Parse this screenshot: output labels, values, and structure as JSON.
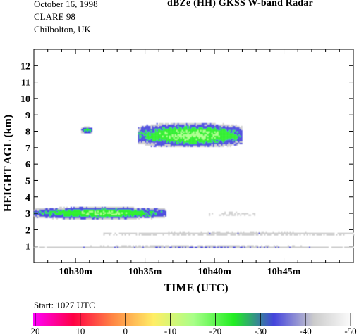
{
  "header": {
    "date": "October 16, 1998",
    "campaign": "CLARE 98",
    "site": "Chilbolton, UK"
  },
  "colorbar": {
    "start_text": "Start: 1027 UTC",
    "labels": [
      "20",
      "10",
      "0",
      "-10",
      "-20",
      "-30",
      "-40",
      "-50"
    ],
    "colors": [
      "#ff00ff",
      "#ff0044",
      "#ff8844",
      "#ffee66",
      "#a8ff88",
      "#22ee22",
      "#4444dd",
      "#cccccc",
      "#ffffff"
    ]
  },
  "chart_data": {
    "type": "heatmap",
    "title": "dBZe (HH)   GKSS  W-band Radar",
    "xlabel": "TIME (UTC)",
    "ylabel": "HEIGHT AGL (km)",
    "x_tick_labels": [
      "10h30m",
      "10h35m",
      "10h40m",
      "10h45m"
    ],
    "x_tick_minutes": [
      30,
      35,
      40,
      45
    ],
    "xlim_minutes": [
      27,
      50
    ],
    "ylim_km": [
      0,
      13
    ],
    "y_ticks": [
      1,
      2,
      3,
      4,
      5,
      6,
      7,
      8,
      9,
      10,
      11,
      12
    ],
    "grid": false,
    "value_range_dbz": [
      20,
      -50
    ],
    "cloud_features": [
      {
        "name": "upper cloud fragment",
        "t_start": 30.4,
        "t_end": 31.2,
        "z_bottom_km": 7.9,
        "z_top_km": 8.3,
        "peak_dbz": -25
      },
      {
        "name": "upper cloud layer",
        "t_start": 34.5,
        "t_end": 42.0,
        "z_bottom_km": 7.1,
        "z_top_km": 8.5,
        "peak_dbz": -18
      },
      {
        "name": "low cloud layer",
        "t_start": 27.0,
        "t_end": 36.5,
        "z_bottom_km": 2.7,
        "z_top_km": 3.4,
        "peak_dbz": -20
      },
      {
        "name": "thin layer near 3 km",
        "t_start": 39.6,
        "t_end": 43.0,
        "z_bottom_km": 2.9,
        "z_top_km": 3.1,
        "peak_dbz": -45
      },
      {
        "name": "thin layer near 1.8 km",
        "t_start": 32.0,
        "t_end": 50.0,
        "z_bottom_km": 1.7,
        "z_top_km": 1.9,
        "peak_dbz": -40
      },
      {
        "name": "surface clutter line",
        "t_start": 27.0,
        "t_end": 50.0,
        "z_bottom_km": 0.95,
        "z_top_km": 1.05,
        "peak_dbz": -30
      }
    ]
  }
}
